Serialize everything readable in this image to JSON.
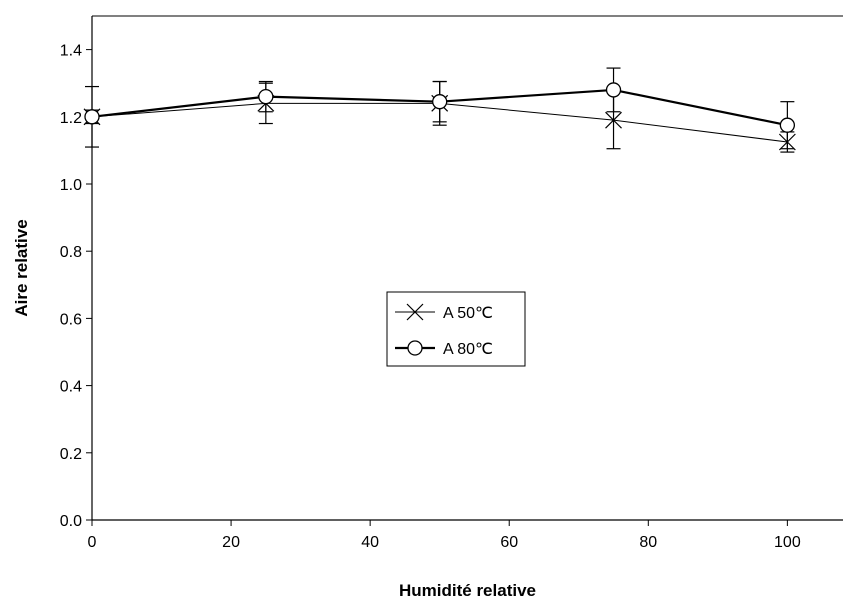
{
  "chart_data": {
    "type": "line",
    "title": "",
    "xlabel": "Humidité relative",
    "ylabel": "Aire relative",
    "xlim": [
      0,
      108
    ],
    "ylim": [
      0,
      1.5
    ],
    "x_ticks": [
      0,
      20,
      40,
      60,
      80,
      100
    ],
    "y_ticks": [
      0.0,
      0.2,
      0.4,
      0.6,
      0.8,
      1.0,
      1.2,
      1.4
    ],
    "x_tick_labels": [
      "0",
      "20",
      "40",
      "60",
      "80",
      "100"
    ],
    "y_tick_labels": [
      "0.0",
      "0.2",
      "0.4",
      "0.6",
      "0.8",
      "1.0",
      "1.2",
      "1.4"
    ],
    "grid": false,
    "legend_position": "center",
    "x": [
      0,
      25,
      50,
      75,
      100
    ],
    "series": [
      {
        "name": "A 50℃",
        "marker": "x",
        "line_weight": "thin",
        "values": [
          1.2,
          1.24,
          1.24,
          1.19,
          1.125
        ],
        "error": [
          0.09,
          0.06,
          0.065,
          0.085,
          0.03
        ]
      },
      {
        "name": "A 80℃",
        "marker": "circle",
        "line_weight": "thick",
        "values": [
          1.2,
          1.26,
          1.245,
          1.28,
          1.175
        ],
        "error": [
          0.02,
          0.045,
          0.06,
          0.065,
          0.07
        ]
      }
    ]
  }
}
